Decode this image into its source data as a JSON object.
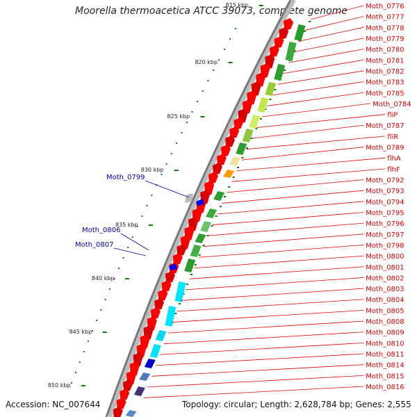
{
  "title": "Moorella thermoacetica ATCC 39073, complete genome",
  "accession": "Accession: NC_007644",
  "topology": "Topology: circular; Length: 2,628,784 bp; Genes: 2,555",
  "colors": {
    "cds": "#ff0000",
    "cds_dark": "#d80000",
    "labels_right": "#e00000",
    "labels_left": "#0000aa",
    "backbone": "#777777",
    "tick": "#117711"
  },
  "ticks": [
    "815 kbp",
    "820 kbp",
    "825 kbp",
    "830 kbp",
    "835 kbp",
    "840 kbp",
    "845 kbp",
    "850 kbp"
  ],
  "right_labels": [
    "Moth_0776",
    "Moth_0777",
    "Moth_0778",
    "Moth_0779",
    "Moth_0780",
    "Moth_0781",
    "Moth_0782",
    "Moth_0783",
    "Moth_0785",
    "Moth_0784",
    "fliP",
    "Moth_0787",
    "fliR",
    "Moth_0789",
    "flhA",
    "flhF",
    "Moth_0792",
    "Moth_0793",
    "Moth_0794",
    "Moth_0795",
    "Moth_0796",
    "Moth_0797",
    "Moth_0798",
    "Moth_0800",
    "Moth_0801",
    "Moth_0802",
    "Moth_0803",
    "Moth_0804",
    "Moth_0805",
    "Moth_0808",
    "Moth_0809",
    "Moth_0810",
    "Moth_0811",
    "Moth_0814",
    "Moth_0815",
    "Moth_0816"
  ],
  "left_labels": [
    "Moth_0799",
    "Moth_0806",
    "Moth_0807"
  ]
}
